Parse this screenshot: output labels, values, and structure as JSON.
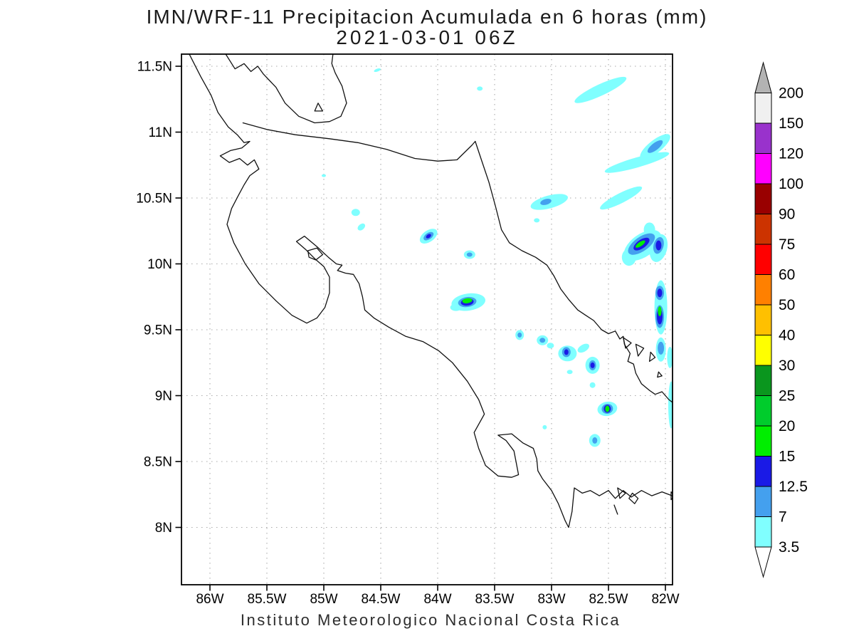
{
  "header": {
    "title": "IMN/WRF-11 Precipitacion Acumulada en 6 horas (mm)",
    "subtitle": "2021-03-01 06Z"
  },
  "footer": {
    "text": "Instituto Meteorologico Nacional Costa Rica"
  },
  "chart_data": {
    "type": "heatmap",
    "model": "IMN/WRF-11",
    "variable": "Precipitacion Acumulada en 6 horas (mm)",
    "valid_time": "2021-03-01 06Z",
    "region": "Costa Rica",
    "lat_ticks": [
      {
        "label": "11.5N",
        "lat": 11.5
      },
      {
        "label": "11N",
        "lat": 11.0
      },
      {
        "label": "10.5N",
        "lat": 10.5
      },
      {
        "label": "10N",
        "lat": 10.0
      },
      {
        "label": "9.5N",
        "lat": 9.5
      },
      {
        "label": "9N",
        "lat": 9.0
      },
      {
        "label": "8.5N",
        "lat": 8.5
      },
      {
        "label": "8N",
        "lat": 8.0
      }
    ],
    "lon_ticks": [
      {
        "label": "86W",
        "lon": 86.0
      },
      {
        "label": "85.5W",
        "lon": 85.5
      },
      {
        "label": "85W",
        "lon": 85.0
      },
      {
        "label": "84.5W",
        "lon": 84.5
      },
      {
        "label": "84W",
        "lon": 84.0
      },
      {
        "label": "83.5W",
        "lon": 83.5
      },
      {
        "label": "83W",
        "lon": 83.0
      },
      {
        "label": "82.5W",
        "lon": 82.5
      },
      {
        "label": "82W",
        "lon": 82.0
      }
    ],
    "contour_levels_mm": [
      3.5,
      7,
      12.5,
      15,
      20,
      25,
      30,
      40,
      50,
      60,
      75,
      90,
      100,
      120,
      150,
      200
    ],
    "colorbar": {
      "segment_colors_low_to_high": [
        "#80ffff",
        "#44a0ee",
        "#1a1ae6",
        "#00ee00",
        "#00cc2c",
        "#0a961e",
        "#ffff00",
        "#ffc000",
        "#ff8000",
        "#ff0000",
        "#cc3300",
        "#990000",
        "#ff00ff",
        "#9932cc",
        "#f0f0f0"
      ],
      "under_color": "#ffffff",
      "over_color": "#b3b3b3"
    },
    "shown_levels_mm": [
      3.5,
      7,
      12.5,
      15
    ],
    "palette_by_level": {
      "1": "#80ffff",
      "2": "#44a0ee",
      "3": "#1a1ae6",
      "4": "#00ee00"
    },
    "precip_blobs_format": [
      "lonW",
      "latN",
      "rx_px",
      "ry_px",
      "rot_deg",
      "level_index"
    ],
    "precip_blobs": [
      [
        84.53,
        11.47,
        5,
        2,
        -20,
        1
      ],
      [
        85.0,
        10.67,
        3,
        2,
        0,
        1
      ],
      [
        84.72,
        10.39,
        6,
        5,
        0,
        1
      ],
      [
        84.67,
        10.28,
        6,
        4,
        -40,
        1
      ],
      [
        82.57,
        11.32,
        40,
        8,
        -25,
        1
      ],
      [
        83.63,
        11.33,
        4,
        3,
        0,
        1
      ],
      [
        82.09,
        10.89,
        26,
        9,
        -38,
        1
      ],
      [
        82.25,
        10.77,
        47,
        7,
        -16,
        1
      ],
      [
        82.39,
        10.5,
        33,
        7,
        -27,
        1
      ],
      [
        83.02,
        10.47,
        27,
        9,
        -15,
        1
      ],
      [
        83.13,
        10.33,
        4,
        3,
        0,
        1
      ],
      [
        84.08,
        10.21,
        14,
        8,
        -35,
        1
      ],
      [
        83.72,
        10.07,
        8,
        6,
        0,
        1
      ],
      [
        82.2,
        10.14,
        30,
        16,
        -35,
        1
      ],
      [
        82.06,
        10.12,
        12,
        20,
        15,
        1
      ],
      [
        82.32,
        10.05,
        10,
        12,
        0,
        1
      ],
      [
        82.14,
        10.26,
        8,
        10,
        0,
        1
      ],
      [
        82.04,
        9.67,
        9,
        38,
        0,
        1
      ],
      [
        82.04,
        9.35,
        7,
        17,
        0,
        1
      ],
      [
        81.96,
        9.29,
        4,
        15,
        0,
        1
      ],
      [
        81.95,
        8.93,
        4,
        33,
        0,
        1
      ],
      [
        83.73,
        9.71,
        24,
        12,
        -8,
        1
      ],
      [
        83.84,
        9.67,
        8,
        5,
        0,
        1
      ],
      [
        83.28,
        9.46,
        6,
        7,
        0,
        1
      ],
      [
        83.08,
        9.42,
        8,
        7,
        0,
        1
      ],
      [
        83.01,
        9.38,
        5,
        4,
        0,
        1
      ],
      [
        82.86,
        9.32,
        13,
        11,
        0,
        1
      ],
      [
        82.72,
        9.36,
        9,
        5,
        -30,
        1
      ],
      [
        82.64,
        9.23,
        10,
        12,
        0,
        1
      ],
      [
        82.84,
        9.18,
        4,
        3,
        0,
        1
      ],
      [
        82.64,
        9.08,
        4,
        4,
        0,
        1
      ],
      [
        82.51,
        8.9,
        14,
        10,
        -10,
        1
      ],
      [
        82.62,
        8.66,
        8,
        9,
        0,
        1
      ],
      [
        83.06,
        8.76,
        3,
        3,
        0,
        1
      ],
      [
        82.09,
        10.89,
        13,
        5,
        -38,
        2
      ],
      [
        83.05,
        10.47,
        8,
        4,
        -15,
        2
      ],
      [
        84.08,
        10.21,
        8,
        4.5,
        -35,
        2
      ],
      [
        83.72,
        10.07,
        4,
        3,
        0,
        2
      ],
      [
        82.21,
        10.15,
        22,
        10,
        -35,
        2
      ],
      [
        82.06,
        10.14,
        7,
        12,
        15,
        2
      ],
      [
        82.05,
        9.78,
        6,
        10,
        0,
        2
      ],
      [
        82.05,
        9.6,
        6,
        16,
        0,
        2
      ],
      [
        82.04,
        9.36,
        4.5,
        9,
        0,
        2
      ],
      [
        83.74,
        9.71,
        13,
        7,
        -8,
        2
      ],
      [
        83.28,
        9.46,
        3,
        3.5,
        0,
        2
      ],
      [
        83.08,
        9.42,
        4,
        3.5,
        0,
        2
      ],
      [
        82.87,
        9.33,
        6,
        7,
        0,
        2
      ],
      [
        82.64,
        9.23,
        5,
        7,
        0,
        2
      ],
      [
        82.51,
        8.9,
        8,
        7,
        -10,
        2
      ],
      [
        82.62,
        8.66,
        3.5,
        4.5,
        0,
        2
      ],
      [
        84.08,
        10.21,
        4,
        2.5,
        -35,
        3
      ],
      [
        82.21,
        10.15,
        13,
        6,
        -35,
        3
      ],
      [
        82.06,
        10.14,
        4,
        7,
        0,
        3
      ],
      [
        82.05,
        9.78,
        3.5,
        6,
        0,
        3
      ],
      [
        82.05,
        9.6,
        4,
        11,
        0,
        3
      ],
      [
        83.74,
        9.71,
        9,
        5,
        -8,
        3
      ],
      [
        82.87,
        9.33,
        3,
        4,
        0,
        3
      ],
      [
        82.64,
        9.23,
        3,
        4,
        0,
        3
      ],
      [
        82.51,
        8.9,
        5,
        5.5,
        0,
        3
      ],
      [
        82.22,
        10.15,
        8,
        3,
        -35,
        4
      ],
      [
        82.05,
        9.64,
        2.5,
        7,
        0,
        4
      ],
      [
        83.74,
        9.72,
        7,
        3.5,
        -8,
        4
      ],
      [
        82.51,
        8.9,
        3,
        4.5,
        0,
        4
      ]
    ],
    "coastlines": {
      "pacific_coast": [
        [
          86.18,
          11.59
        ],
        [
          86.08,
          11.42
        ],
        [
          85.99,
          11.28
        ],
        [
          85.93,
          11.15
        ],
        [
          85.84,
          11.04
        ],
        [
          85.76,
          10.98
        ],
        [
          85.7,
          10.92
        ],
        [
          85.65,
          10.93
        ],
        [
          85.72,
          10.88
        ],
        [
          85.82,
          10.86
        ],
        [
          85.91,
          10.82
        ],
        [
          85.83,
          10.77
        ],
        [
          85.74,
          10.8
        ],
        [
          85.67,
          10.75
        ],
        [
          85.61,
          10.79
        ],
        [
          85.57,
          10.72
        ],
        [
          85.65,
          10.67
        ],
        [
          85.7,
          10.6
        ],
        [
          85.75,
          10.52
        ],
        [
          85.81,
          10.42
        ],
        [
          85.85,
          10.3
        ],
        [
          85.79,
          10.16
        ],
        [
          85.69,
          10.0
        ],
        [
          85.57,
          9.85
        ],
        [
          85.42,
          9.72
        ],
        [
          85.28,
          9.61
        ],
        [
          85.15,
          9.55
        ],
        [
          85.06,
          9.59
        ],
        [
          84.99,
          9.67
        ],
        [
          84.95,
          9.78
        ],
        [
          84.95,
          9.9
        ],
        [
          85.0,
          9.98
        ],
        [
          85.08,
          10.04
        ],
        [
          85.16,
          10.11
        ],
        [
          85.24,
          10.17
        ],
        [
          85.17,
          10.21
        ],
        [
          85.06,
          10.13
        ],
        [
          84.96,
          10.05
        ],
        [
          84.89,
          10.0
        ],
        [
          84.84,
          9.99
        ],
        [
          84.88,
          9.95
        ],
        [
          84.81,
          9.93
        ],
        [
          84.74,
          9.92
        ],
        [
          84.69,
          9.85
        ],
        [
          84.66,
          9.75
        ],
        [
          84.64,
          9.65
        ],
        [
          84.56,
          9.59
        ],
        [
          84.43,
          9.52
        ],
        [
          84.28,
          9.45
        ],
        [
          84.13,
          9.41
        ],
        [
          83.99,
          9.34
        ],
        [
          83.87,
          9.25
        ],
        [
          83.74,
          9.11
        ],
        [
          83.64,
          8.97
        ],
        [
          83.59,
          8.86
        ],
        [
          83.68,
          8.72
        ],
        [
          83.64,
          8.6
        ],
        [
          83.58,
          8.47
        ],
        [
          83.47,
          8.39
        ],
        [
          83.35,
          8.38
        ],
        [
          83.29,
          8.4
        ],
        [
          83.31,
          8.49
        ],
        [
          83.33,
          8.58
        ],
        [
          83.4,
          8.66
        ],
        [
          83.47,
          8.7
        ],
        [
          83.35,
          8.71
        ],
        [
          83.25,
          8.64
        ],
        [
          83.16,
          8.6
        ],
        [
          83.13,
          8.52
        ],
        [
          83.12,
          8.43
        ],
        [
          83.08,
          8.37
        ],
        [
          83.0,
          8.28
        ],
        [
          82.94,
          8.18
        ],
        [
          82.88,
          8.05
        ],
        [
          82.85,
          8.0
        ],
        [
          82.82,
          8.12
        ],
        [
          82.8,
          8.3
        ],
        [
          82.73,
          8.26
        ],
        [
          82.66,
          8.28
        ],
        [
          82.58,
          8.24
        ],
        [
          82.5,
          8.28
        ],
        [
          82.44,
          8.22
        ],
        [
          82.37,
          8.28
        ],
        [
          82.3,
          8.23
        ],
        [
          82.21,
          8.28
        ],
        [
          82.12,
          8.24
        ],
        [
          82.03,
          8.27
        ],
        [
          81.94,
          8.24
        ]
      ],
      "caribbean_coast": [
        [
          83.67,
          10.93
        ],
        [
          83.62,
          10.8
        ],
        [
          83.55,
          10.62
        ],
        [
          83.49,
          10.43
        ],
        [
          83.44,
          10.26
        ],
        [
          83.37,
          10.16
        ],
        [
          83.26,
          10.1
        ],
        [
          83.14,
          10.05
        ],
        [
          83.04,
          9.99
        ],
        [
          82.98,
          9.91
        ],
        [
          82.92,
          9.81
        ],
        [
          82.85,
          9.73
        ],
        [
          82.77,
          9.65
        ],
        [
          82.7,
          9.61
        ],
        [
          82.63,
          9.57
        ],
        [
          82.56,
          9.5
        ],
        [
          82.5,
          9.47
        ],
        [
          82.44,
          9.49
        ],
        [
          82.4,
          9.43
        ],
        [
          82.37,
          9.45
        ],
        [
          82.36,
          9.39
        ],
        [
          82.31,
          9.32
        ],
        [
          82.33,
          9.26
        ],
        [
          82.28,
          9.24
        ],
        [
          82.26,
          9.17
        ],
        [
          82.21,
          9.09
        ],
        [
          82.14,
          9.04
        ],
        [
          82.09,
          9.01
        ],
        [
          82.03,
          9.03
        ],
        [
          81.97,
          8.97
        ],
        [
          81.94,
          8.95
        ]
      ],
      "lake_nicaragua": [
        [
          85.86,
          11.59
        ],
        [
          85.78,
          11.48
        ],
        [
          85.7,
          11.52
        ],
        [
          85.64,
          11.46
        ],
        [
          85.58,
          11.5
        ],
        [
          85.53,
          11.44
        ],
        [
          85.42,
          11.34
        ],
        [
          85.34,
          11.22
        ],
        [
          85.22,
          11.12
        ],
        [
          85.08,
          11.07
        ],
        [
          84.95,
          11.08
        ],
        [
          84.85,
          11.12
        ],
        [
          84.8,
          11.22
        ],
        [
          84.84,
          11.35
        ],
        [
          84.9,
          11.45
        ],
        [
          84.93,
          11.52
        ],
        [
          84.92,
          11.59
        ]
      ],
      "border_san_juan_river": [
        [
          85.71,
          11.07
        ],
        [
          85.5,
          11.02
        ],
        [
          85.25,
          10.98
        ],
        [
          84.95,
          10.95
        ],
        [
          84.7,
          10.92
        ],
        [
          84.45,
          10.87
        ],
        [
          84.2,
          10.8
        ],
        [
          84.0,
          10.78
        ],
        [
          83.83,
          10.79
        ],
        [
          83.7,
          10.9
        ],
        [
          83.67,
          10.93
        ]
      ],
      "open_lines": [
        [
          [
            82.45,
            8.17
          ],
          [
            82.42,
            8.1
          ]
        ]
      ],
      "islands": [
        [
          [
            85.08,
            11.16
          ],
          [
            85.01,
            11.16
          ],
          [
            85.05,
            11.22
          ]
        ],
        [
          [
            85.14,
            10.1
          ],
          [
            85.06,
            10.12
          ],
          [
            85.01,
            10.07
          ],
          [
            85.07,
            10.03
          ],
          [
            85.13,
            10.05
          ]
        ],
        [
          [
            82.37,
            9.44
          ],
          [
            82.3,
            9.4
          ],
          [
            82.35,
            9.36
          ]
        ],
        [
          [
            82.26,
            9.39
          ],
          [
            82.19,
            9.36
          ],
          [
            82.24,
            9.3
          ]
        ],
        [
          [
            82.13,
            9.33
          ],
          [
            82.09,
            9.29
          ],
          [
            82.14,
            9.26
          ]
        ],
        [
          [
            82.06,
            9.18
          ],
          [
            82.03,
            9.15
          ],
          [
            82.07,
            9.14
          ]
        ],
        [
          [
            82.42,
            8.3
          ],
          [
            82.35,
            8.26
          ],
          [
            82.4,
            8.22
          ]
        ],
        [
          [
            82.29,
            8.26
          ],
          [
            82.24,
            8.22
          ],
          [
            82.27,
            8.18
          ],
          [
            82.32,
            8.22
          ]
        ],
        [
          [
            81.95,
            8.27
          ],
          [
            81.92,
            8.24
          ],
          [
            81.95,
            8.21
          ]
        ]
      ]
    }
  }
}
